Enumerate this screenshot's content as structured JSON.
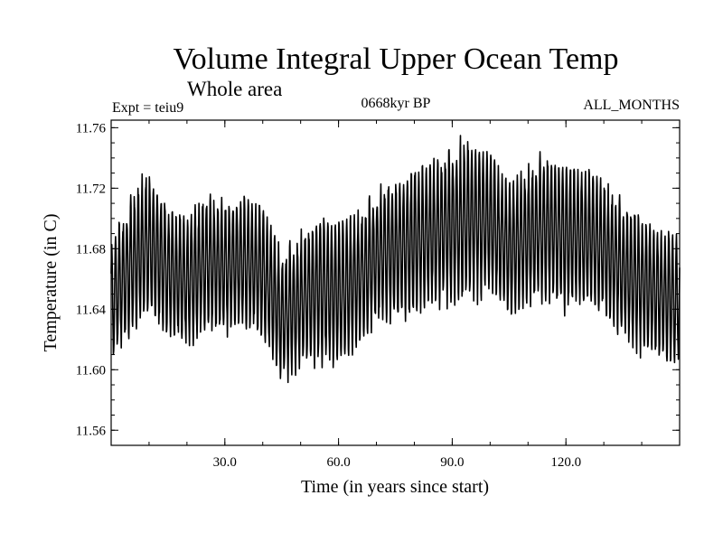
{
  "chart_data": {
    "type": "line",
    "title": "Volume Integral Upper Ocean Temp",
    "subtitle": "Whole area",
    "experiment_label": "Expt = teiu9",
    "period_label": "0668kyr BP",
    "months_label": "ALL_MONTHS",
    "xlabel": "Time (in years since start)",
    "ylabel": "Temperature (in C)",
    "xlim": [
      0,
      150
    ],
    "ylim": [
      11.55,
      11.765
    ],
    "x_ticks": [
      30,
      60,
      90,
      120
    ],
    "x_tick_labels": [
      "30.0",
      "60.0",
      "90.0",
      "120.0"
    ],
    "y_ticks": [
      11.56,
      11.6,
      11.64,
      11.68,
      11.72,
      11.76
    ],
    "y_tick_labels": [
      "11.56",
      "11.60",
      "11.64",
      "11.68",
      "11.72",
      "11.76"
    ],
    "sampling": "monthly (12 per year), seasonal cycle",
    "series": [
      {
        "name": "Upper ocean temperature",
        "color": "#000000",
        "x_years": [
          0,
          5,
          10,
          15,
          20,
          25,
          30,
          35,
          40,
          45,
          50,
          55,
          60,
          65,
          70,
          75,
          80,
          85,
          90,
          95,
          100,
          105,
          110,
          115,
          120,
          125,
          130,
          135,
          140,
          145,
          150
        ],
        "annual_mean": [
          11.645,
          11.668,
          11.685,
          11.665,
          11.658,
          11.672,
          11.668,
          11.672,
          11.665,
          11.635,
          11.645,
          11.655,
          11.65,
          11.66,
          11.675,
          11.68,
          11.685,
          11.69,
          11.695,
          11.7,
          11.698,
          11.68,
          11.688,
          11.695,
          11.69,
          11.688,
          11.682,
          11.665,
          11.658,
          11.65,
          11.645
        ],
        "seasonal_half_amplitude": [
          0.035,
          0.042,
          0.045,
          0.04,
          0.04,
          0.042,
          0.04,
          0.042,
          0.04,
          0.04,
          0.04,
          0.045,
          0.045,
          0.042,
          0.04,
          0.042,
          0.045,
          0.045,
          0.048,
          0.048,
          0.045,
          0.04,
          0.042,
          0.045,
          0.045,
          0.042,
          0.04,
          0.042,
          0.042,
          0.04,
          0.038
        ]
      }
    ]
  }
}
